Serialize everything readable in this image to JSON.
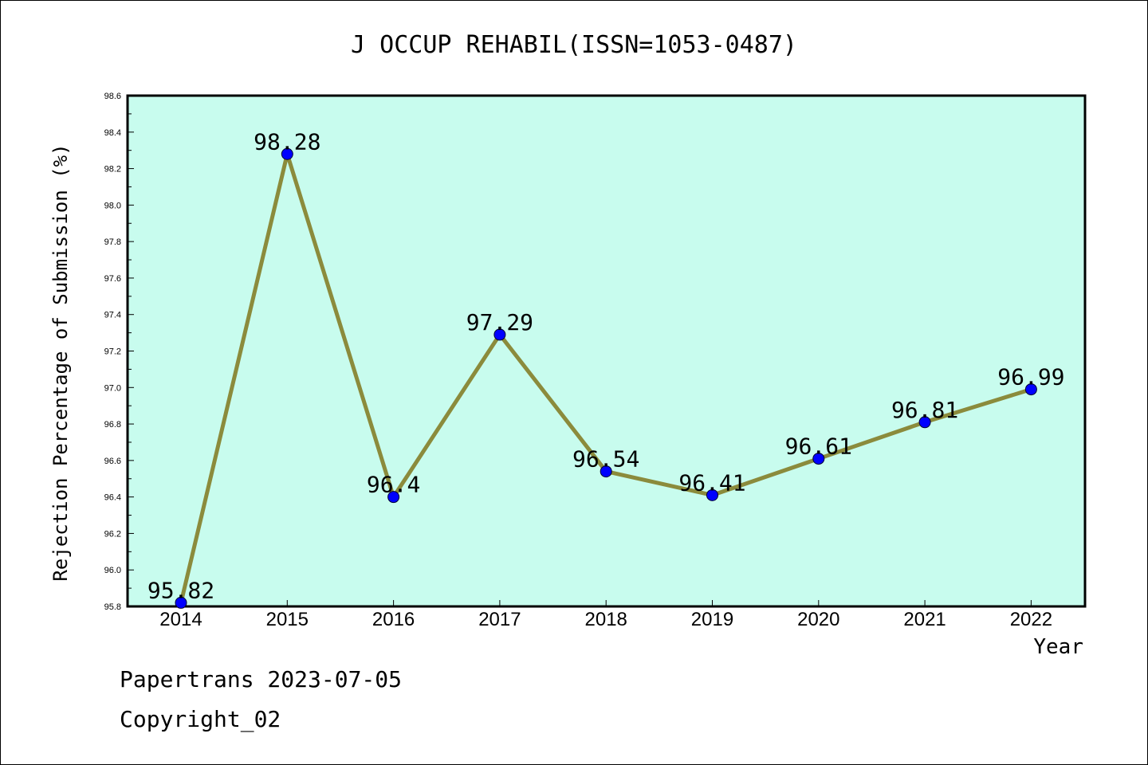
{
  "chart_data": {
    "type": "line",
    "title": "J OCCUP REHABIL(ISSN=1053-0487)",
    "xlabel": "Year",
    "ylabel": "Rejection Percentage of Submission (%)",
    "categories": [
      "2014",
      "2015",
      "2016",
      "2017",
      "2018",
      "2019",
      "2020",
      "2021",
      "2022"
    ],
    "series": [
      {
        "values": [
          95.82,
          98.28,
          96.4,
          97.29,
          96.54,
          96.41,
          96.61,
          96.81,
          96.99
        ],
        "data_labels": [
          "95.82",
          "98.28",
          "96.4",
          "97.29",
          "96.54",
          "96.41",
          "96.61",
          "96.81",
          "96.99"
        ]
      }
    ],
    "ylim": [
      95.8,
      98.6
    ],
    "yticks": [
      "95.8",
      "96.0",
      "96.2",
      "96.4",
      "96.6",
      "96.8",
      "97.0",
      "97.2",
      "97.4",
      "97.6",
      "97.8",
      "98.0",
      "98.2",
      "98.4",
      "98.6"
    ],
    "grid": false,
    "colors": {
      "plot_background": "#c8fcee",
      "line": "#8b8b3c",
      "marker": "#0000ff"
    }
  },
  "footer": {
    "line1": "Papertrans 2023-07-05",
    "line2": "Copyright_02"
  }
}
